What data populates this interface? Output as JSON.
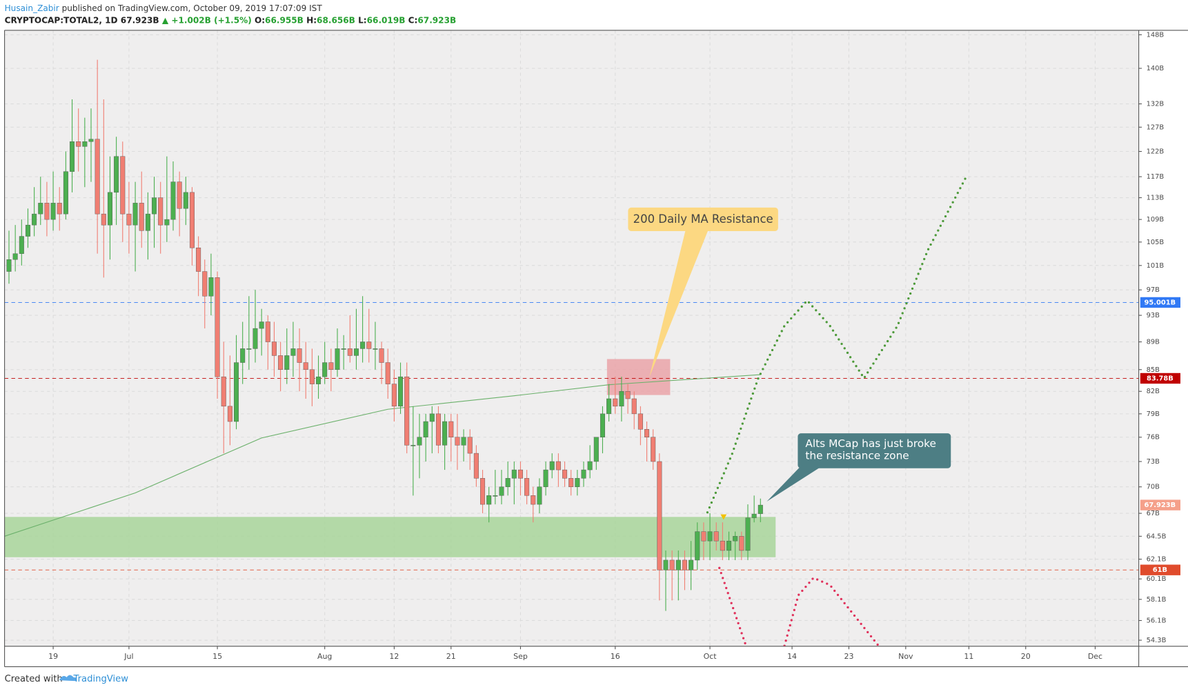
{
  "header": {
    "author": "Husain_Zabir",
    "published": "published on TradingView.com, October 09, 2019 17:07:09 IST",
    "symbol": "CRYPTOCAP:TOTAL2, 1D",
    "last": "67.923B",
    "change": "▲ +1.002B (+1.5%)",
    "ohlc": [
      {
        "label": "O:",
        "value": "66.955B"
      },
      {
        "label": "H:",
        "value": "68.656B"
      },
      {
        "label": "L:",
        "value": "66.019B"
      },
      {
        "label": "C:",
        "value": "67.923B"
      }
    ]
  },
  "chart_data": {
    "type": "candlestick",
    "log": true,
    "grid": true,
    "up_color": "#4caf50",
    "down_color": "#f07e72",
    "xlim": [
      -0.7,
      178.9
    ],
    "ylim": [
      53.76,
      149.1
    ],
    "xticks": [
      {
        "value": 7,
        "label": "19"
      },
      {
        "value": 19,
        "label": "Jul"
      },
      {
        "value": 33,
        "label": "15"
      },
      {
        "value": 50,
        "label": "Aug"
      },
      {
        "value": 61,
        "label": "12"
      },
      {
        "value": 70,
        "label": "21"
      },
      {
        "value": 81,
        "label": "Sep"
      },
      {
        "value": 96,
        "label": "16"
      },
      {
        "value": 111,
        "label": "Oct"
      },
      {
        "value": 124,
        "label": "14"
      },
      {
        "value": 133,
        "label": "23"
      },
      {
        "value": 142,
        "label": "Nov"
      },
      {
        "value": 152,
        "label": "11"
      },
      {
        "value": 161,
        "label": "20"
      },
      {
        "value": 172,
        "label": "Dec"
      }
    ],
    "yticks": [
      {
        "value": 148,
        "label": "148B"
      },
      {
        "value": 140,
        "label": "140B"
      },
      {
        "value": 132,
        "label": "132B"
      },
      {
        "value": 127,
        "label": "127B"
      },
      {
        "value": 122,
        "label": "122B"
      },
      {
        "value": 117,
        "label": "117B"
      },
      {
        "value": 113,
        "label": "113B"
      },
      {
        "value": 109,
        "label": "109B"
      },
      {
        "value": 105,
        "label": "105B"
      },
      {
        "value": 101,
        "label": "101B"
      },
      {
        "value": 97,
        "label": "97B"
      },
      {
        "value": 93,
        "label": "93B"
      },
      {
        "value": 89,
        "label": "89B"
      },
      {
        "value": 85,
        "label": "85B"
      },
      {
        "value": 82,
        "label": "82B"
      },
      {
        "value": 79,
        "label": "79B"
      },
      {
        "value": 76,
        "label": "76B"
      },
      {
        "value": 73,
        "label": "73B"
      },
      {
        "value": 70,
        "label": "70B"
      },
      {
        "value": 67,
        "label": "67B"
      },
      {
        "value": 64.5,
        "label": "64.5B"
      },
      {
        "value": 62.1,
        "label": "62.1B"
      },
      {
        "value": 60.1,
        "label": "60.1B"
      },
      {
        "value": 58.1,
        "label": "58.1B"
      },
      {
        "value": 56.1,
        "label": "56.1B"
      },
      {
        "value": 54.3,
        "label": "54.3B"
      }
    ],
    "ohlc": [
      [
        100,
        107,
        98,
        102
      ],
      [
        102,
        108,
        100,
        103
      ],
      [
        103,
        109,
        101,
        106
      ],
      [
        106,
        111,
        104,
        108
      ],
      [
        108,
        115,
        106,
        110
      ],
      [
        110,
        117,
        108,
        112
      ],
      [
        112,
        116,
        106,
        109
      ],
      [
        109,
        118,
        107,
        112
      ],
      [
        112,
        115,
        107,
        110
      ],
      [
        110,
        122,
        109,
        118
      ],
      [
        118,
        133,
        114,
        124
      ],
      [
        124,
        131,
        118,
        123
      ],
      [
        123,
        129,
        115,
        124
      ],
      [
        124,
        131,
        116,
        124.5
      ],
      [
        124.5,
        142,
        103,
        110
      ],
      [
        110,
        133,
        99,
        108
      ],
      [
        108,
        121,
        102,
        114
      ],
      [
        114,
        125,
        108,
        121
      ],
      [
        121,
        124,
        105,
        110
      ],
      [
        110,
        116,
        103,
        108
      ],
      [
        108,
        116,
        100,
        112
      ],
      [
        112,
        118,
        104,
        107
      ],
      [
        107,
        114,
        102,
        110
      ],
      [
        110,
        117,
        104,
        113
      ],
      [
        113,
        116,
        103,
        108
      ],
      [
        108,
        121,
        105,
        109
      ],
      [
        109,
        120,
        107,
        116
      ],
      [
        116,
        118,
        106,
        111
      ],
      [
        111,
        117,
        108,
        114
      ],
      [
        114,
        115,
        101,
        104
      ],
      [
        104,
        106,
        96,
        100
      ],
      [
        100,
        102,
        91,
        96
      ],
      [
        96,
        103,
        93,
        99
      ],
      [
        99,
        100,
        81,
        84
      ],
      [
        84,
        89,
        74,
        80
      ],
      [
        80,
        87,
        75,
        78
      ],
      [
        78,
        90,
        77,
        86
      ],
      [
        86,
        92,
        83,
        88
      ],
      [
        88,
        96,
        85,
        88
      ],
      [
        88,
        97,
        86,
        91
      ],
      [
        91,
        94,
        87,
        92
      ],
      [
        92,
        93,
        85,
        89
      ],
      [
        89,
        92,
        84,
        87
      ],
      [
        87,
        89,
        82,
        85
      ],
      [
        85,
        91,
        83,
        87
      ],
      [
        87,
        92,
        84,
        88
      ],
      [
        88,
        91,
        82,
        86
      ],
      [
        86,
        89,
        81,
        85
      ],
      [
        85,
        88,
        80,
        83
      ],
      [
        83,
        87,
        81,
        84
      ],
      [
        84,
        89,
        83,
        86
      ],
      [
        86,
        88,
        82,
        85
      ],
      [
        85,
        91,
        84,
        88
      ],
      [
        88,
        90,
        85,
        88
      ],
      [
        88,
        93,
        86,
        87
      ],
      [
        87,
        94,
        85,
        88
      ],
      [
        88,
        96,
        86,
        89
      ],
      [
        89,
        94,
        86,
        88
      ],
      [
        88,
        92,
        85,
        88
      ],
      [
        88,
        89,
        83,
        86
      ],
      [
        86,
        88,
        81,
        83
      ],
      [
        83,
        85,
        78,
        80
      ],
      [
        80,
        86,
        79,
        84
      ],
      [
        84,
        86,
        74,
        75
      ],
      [
        75,
        80,
        69,
        75
      ],
      [
        75,
        79,
        71,
        76
      ],
      [
        76,
        79,
        73,
        78
      ],
      [
        78,
        80,
        74,
        79
      ],
      [
        79,
        80,
        74,
        75
      ],
      [
        75,
        79,
        72,
        78
      ],
      [
        78,
        79,
        73,
        76
      ],
      [
        76,
        79,
        72,
        75
      ],
      [
        75,
        77,
        73,
        76
      ],
      [
        76,
        77,
        72,
        74
      ],
      [
        74,
        75,
        70,
        71
      ],
      [
        71,
        72,
        67,
        68
      ],
      [
        68,
        70,
        66,
        69
      ],
      [
        69,
        72,
        68,
        69
      ],
      [
        69,
        72,
        68,
        70
      ],
      [
        70,
        73,
        69,
        71
      ],
      [
        71,
        73,
        68,
        72
      ],
      [
        72,
        73,
        69,
        71
      ],
      [
        71,
        72,
        68,
        69
      ],
      [
        69,
        70,
        66,
        68
      ],
      [
        68,
        71,
        67,
        70
      ],
      [
        70,
        73,
        69,
        72
      ],
      [
        72,
        74,
        71,
        73
      ],
      [
        73,
        74,
        70,
        72
      ],
      [
        72,
        73,
        70,
        71
      ],
      [
        71,
        72,
        69,
        70
      ],
      [
        70,
        72,
        69,
        71
      ],
      [
        71,
        73,
        70,
        72
      ],
      [
        72,
        75,
        71,
        73
      ],
      [
        73,
        76,
        72,
        76
      ],
      [
        76,
        80,
        74,
        79
      ],
      [
        79,
        83,
        78,
        81
      ],
      [
        81,
        84,
        79,
        80
      ],
      [
        80,
        84,
        78,
        82
      ],
      [
        82,
        83,
        79,
        81
      ],
      [
        81,
        82,
        77,
        79
      ],
      [
        79,
        80,
        75,
        77
      ],
      [
        77,
        78,
        73,
        76
      ],
      [
        76,
        77,
        72,
        73
      ],
      [
        73,
        74,
        58,
        61
      ],
      [
        61,
        63,
        57,
        62
      ],
      [
        62,
        63,
        58,
        61
      ],
      [
        61,
        63,
        58,
        62
      ],
      [
        62,
        63,
        59,
        61
      ],
      [
        61,
        64,
        59,
        62
      ],
      [
        62,
        66,
        61,
        65
      ],
      [
        65,
        66,
        62,
        64
      ],
      [
        64,
        67,
        62,
        65
      ],
      [
        65,
        66,
        63,
        64
      ],
      [
        64,
        66,
        62,
        63
      ],
      [
        63,
        65,
        62,
        64
      ],
      [
        64,
        65,
        62,
        64.5
      ],
      [
        64.5,
        65,
        62,
        63
      ],
      [
        63,
        68,
        62,
        66.5
      ],
      [
        66.5,
        69,
        66,
        66.921
      ],
      [
        66.955,
        68.656,
        66.019,
        67.923
      ]
    ],
    "ma": {
      "color": "#6ab06a",
      "x": [
        -0.7,
        20,
        40,
        60,
        80,
        95,
        119
      ],
      "values": [
        64.5,
        69.3,
        75.9,
        79.6,
        81.4,
        82.9,
        84.3
      ]
    },
    "zones": [
      {
        "color": "#a8d59a",
        "x": [
          -0.7,
          121.4
        ],
        "y": [
          62.3,
          66.6
        ]
      },
      {
        "color": "#eaa3a8",
        "x": [
          94.7,
          104.7
        ],
        "y": [
          81.5,
          86.5
        ]
      }
    ],
    "hlines": [
      {
        "value": 95.001,
        "label": "95.001B",
        "color": "#3179f5"
      },
      {
        "value": 83.78,
        "label": "83.78B",
        "color": "#c00000"
      },
      {
        "value": 61,
        "label": "61B",
        "color": "#e04b2c"
      }
    ],
    "last_price": {
      "value": 67.923,
      "label": "67.923B",
      "color": "#f5a08a"
    },
    "projections": [
      {
        "color": "#4d9a3a",
        "x": [
          110.6,
          114.5,
          118.6,
          122.8,
          126.4,
          130,
          135.4,
          140.7,
          145.5,
          151.5
        ],
        "values": [
          67.1,
          73.9,
          83.7,
          91.4,
          95.3,
          91.4,
          83.8,
          91.4,
          103.6,
          116.8
        ]
      },
      {
        "color": "#e0305a",
        "x": [
          112.5,
          116.7
        ],
        "values": [
          61.2,
          53.8
        ]
      },
      {
        "color": "#e0305a",
        "x": [
          122.8,
          125,
          127.4,
          130,
          137.7
        ],
        "values": [
          53.8,
          58.5,
          60.2,
          59.5,
          53.8
        ]
      }
    ],
    "annotations": [
      {
        "text": [
          "200 Daily MA Resistance"
        ]
      },
      {
        "text": [
          "Alts MCap has just broke",
          "the resistance zone"
        ]
      }
    ]
  },
  "footer": {
    "prefix": "Created with",
    "brand": "TradingView"
  }
}
